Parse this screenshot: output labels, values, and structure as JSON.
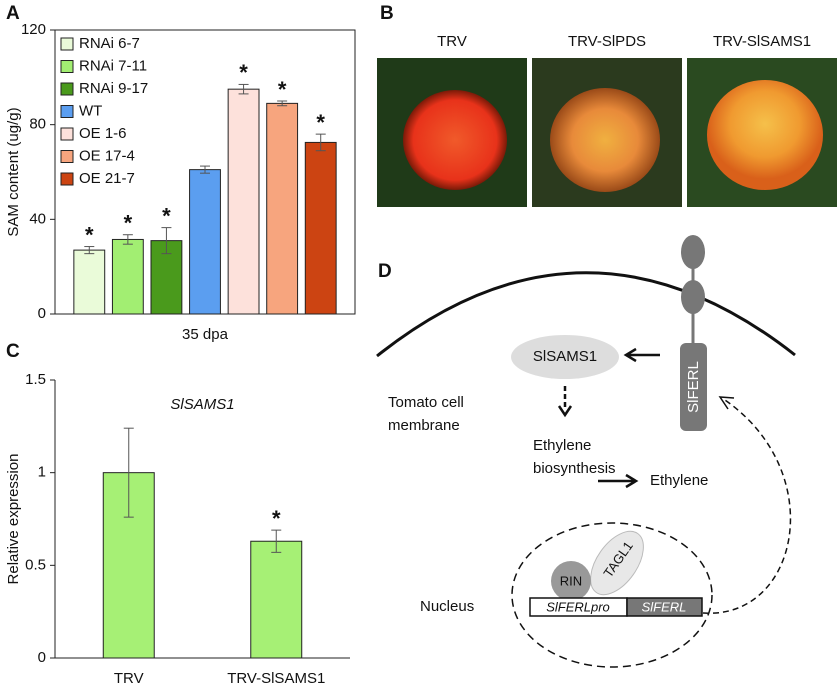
{
  "panels": {
    "a": "A",
    "b": "B",
    "c": "C",
    "d": "D"
  },
  "chart_data": [
    {
      "type": "bar",
      "ylabel": "SAM content (ug/g)",
      "categories": [
        "35 dpa"
      ],
      "ylim": [
        0,
        120
      ],
      "yticks": [
        0,
        40,
        80,
        120
      ],
      "legend": "upper left",
      "series": [
        {
          "name": "RNAi 6-7",
          "color": "#eafbd9",
          "values": [
            27
          ],
          "errors": [
            1.5
          ],
          "significance": "*"
        },
        {
          "name": "RNAi 7-11",
          "color": "#a2ee72",
          "values": [
            31.5
          ],
          "errors": [
            2
          ],
          "significance": "*"
        },
        {
          "name": "RNAi 9-17",
          "color": "#4a9a1c",
          "values": [
            31
          ],
          "errors": [
            5.5
          ],
          "significance": "*"
        },
        {
          "name": "WT",
          "color": "#5b9ef0",
          "values": [
            61
          ],
          "errors": [
            1.5
          ]
        },
        {
          "name": "OE 1-6",
          "color": "#fde1db",
          "values": [
            95
          ],
          "errors": [
            2
          ],
          "significance": "*"
        },
        {
          "name": "OE 17-4",
          "color": "#f7a57e",
          "values": [
            89
          ],
          "errors": [
            1
          ],
          "significance": "*"
        },
        {
          "name": "OE 21-7",
          "color": "#cc4412",
          "values": [
            72.5
          ],
          "errors": [
            3.5
          ],
          "significance": "*"
        }
      ]
    },
    {
      "type": "bar",
      "title": "SlSAMS1",
      "ylabel": "Relative expression",
      "categories": [
        "TRV",
        "TRV-SlSAMS1"
      ],
      "values": [
        1.0,
        0.63
      ],
      "errors": [
        0.24,
        0.06
      ],
      "significance": [
        null,
        "*"
      ],
      "color": "#a6f075",
      "ylim": [
        0,
        1.5
      ],
      "yticks": [
        0,
        0.5,
        1,
        1.5
      ]
    }
  ],
  "photos": [
    "TRV",
    "TRV-SlPDS",
    "TRV-SlSAMS1"
  ],
  "diagram": {
    "receptor": "SlFERL",
    "enzyme": "SlSAMS1",
    "membrane": [
      "Tomato cell",
      "membrane"
    ],
    "biosynthesis": [
      "Ethylene",
      "biosynthesis"
    ],
    "product": "Ethylene",
    "nucleus": "Nucleus",
    "rin": "RIN",
    "tagl1": "TAGL1",
    "promoter": "SlFERLpro",
    "gene": "SlFERL"
  }
}
